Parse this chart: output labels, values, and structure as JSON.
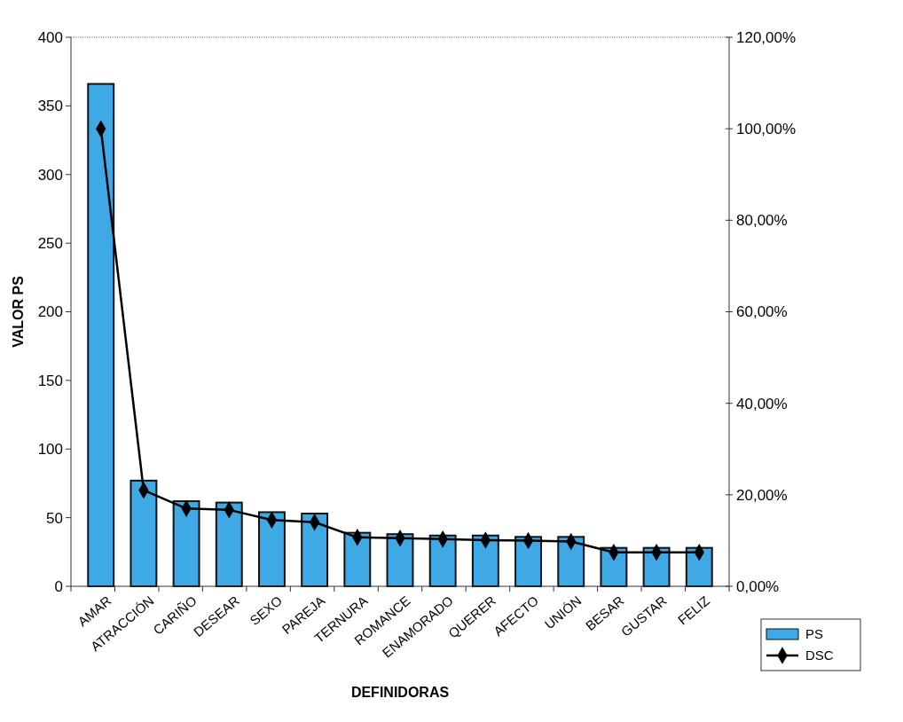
{
  "chart_data": {
    "type": "bar",
    "xlabel": "DEFINIDORAS",
    "ylabel": "VALOR PS",
    "categories": [
      "AMAR",
      "ATRACCIÓN",
      "CARIÑO",
      "DESEAR",
      "SEXO",
      "PAREJA",
      "TERNURA",
      "ROMANCE",
      "ENAMORADO",
      "QUERER",
      "AFECTO",
      "UNIÓN",
      "BESAR",
      "GUSTAR",
      "FELIZ"
    ],
    "series": [
      {
        "name": "PS",
        "color": "#3fa9e6",
        "values": [
          366,
          77,
          62,
          61,
          54,
          53,
          39,
          38,
          37,
          37,
          36,
          36,
          28,
          28,
          28
        ]
      },
      {
        "name": "DSC",
        "type": "line",
        "axis": "y2",
        "color": "#000000",
        "marker": "diamond",
        "values": [
          100,
          21,
          17,
          16.7,
          14.5,
          14,
          10.7,
          10.5,
          10.3,
          10.1,
          10,
          9.8,
          7.4,
          7.4,
          7.4
        ]
      }
    ],
    "ylim": [
      0,
      400
    ],
    "yticks": [
      0,
      50,
      100,
      150,
      200,
      250,
      300,
      350,
      400
    ],
    "y2lim": [
      0,
      120
    ],
    "y2ticks": [
      {
        "value": 0,
        "label": "0,00%"
      },
      {
        "value": 20,
        "label": "20,00%"
      },
      {
        "value": 40,
        "label": "40,00%"
      },
      {
        "value": 60,
        "label": "60,00%"
      },
      {
        "value": 80,
        "label": "80,00%"
      },
      {
        "value": 100,
        "label": "100,00%"
      },
      {
        "value": 120,
        "label": "120,00%"
      }
    ],
    "grid": false,
    "legend": "bottom right"
  }
}
